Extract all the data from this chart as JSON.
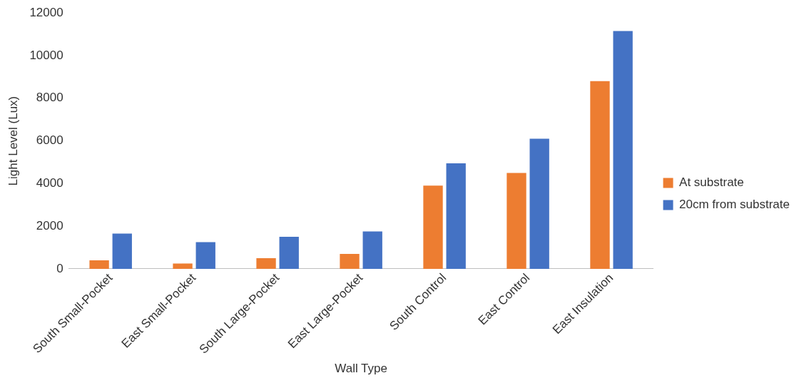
{
  "chart_data": {
    "type": "bar",
    "xlabel": "Wall Type",
    "ylabel": "Light Level (Lux)",
    "categories": [
      "South Small-Pocket",
      "East Small-Pocket",
      "South Large-Pocket",
      "East Large-Pocket",
      "South Control",
      "East Control",
      "East Insulation"
    ],
    "series": [
      {
        "name": "At substrate",
        "color": "#ed7d31",
        "values": [
          400,
          250,
          500,
          700,
          3900,
          4500,
          8800
        ]
      },
      {
        "name": "20cm from substrate",
        "color": "#4472c4",
        "values": [
          1650,
          1250,
          1500,
          1750,
          4950,
          6100,
          11150
        ]
      }
    ],
    "ylim": [
      0,
      12000
    ],
    "yticks": [
      0,
      2000,
      4000,
      6000,
      8000,
      10000,
      12000
    ],
    "grid": false,
    "legend": "right"
  }
}
